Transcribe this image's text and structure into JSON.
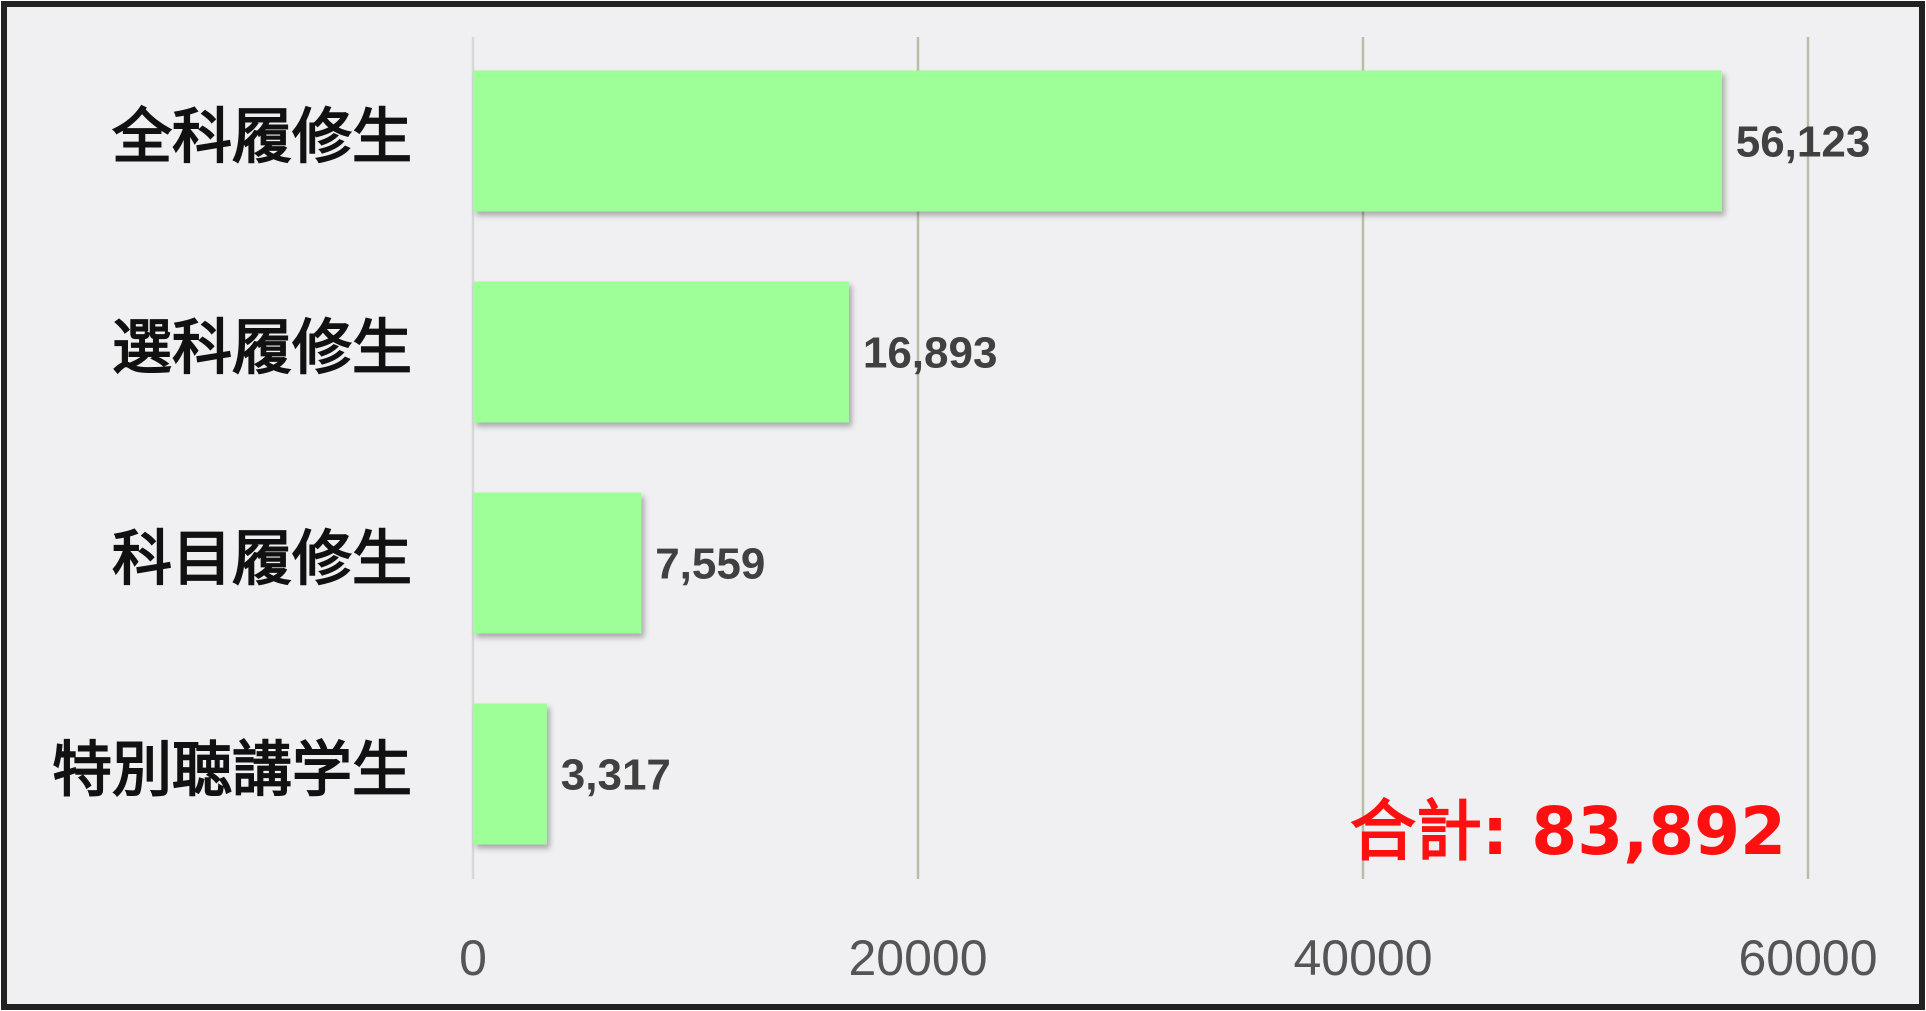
{
  "chart_data": {
    "type": "bar",
    "orientation": "horizontal",
    "categories": [
      "全科履修生",
      "選科履修生",
      "科目履修生",
      "特別聴講学生"
    ],
    "values": [
      56123,
      16893,
      7559,
      3317
    ],
    "value_labels": [
      "56,123",
      "16,893",
      "7,559",
      "3,317"
    ],
    "color": "#9eff99",
    "xlim": [
      0,
      60000
    ],
    "xticks": [
      0,
      20000,
      40000,
      60000
    ],
    "grid": true,
    "annotation": "合計: 83,892"
  }
}
